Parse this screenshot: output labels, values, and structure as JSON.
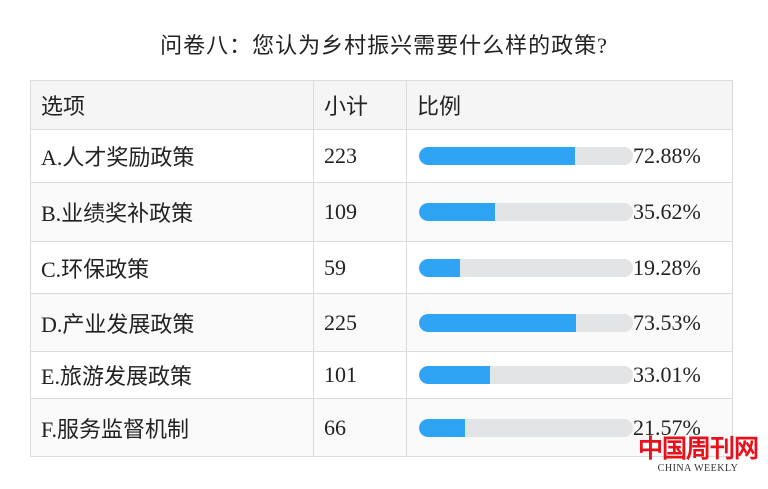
{
  "title": "问卷八：您认为乡村振兴需要什么样的政策?",
  "chart_data": {
    "type": "table",
    "columns": [
      "选项",
      "小计",
      "比例"
    ],
    "rows": [
      {
        "option": "A.人才奖励政策",
        "count": "223",
        "percent": 72.88,
        "percent_label": "72.88%"
      },
      {
        "option": "B.业绩奖补政策",
        "count": "109",
        "percent": 35.62,
        "percent_label": "35.62%"
      },
      {
        "option": "C.环保政策",
        "count": "59",
        "percent": 19.28,
        "percent_label": "19.28%"
      },
      {
        "option": "D.产业发展政策",
        "count": "225",
        "percent": 73.53,
        "percent_label": "73.53%"
      },
      {
        "option": "E.旅游发展政策",
        "count": "101",
        "percent": 33.01,
        "percent_label": "33.01%"
      },
      {
        "option": "F.服务监督机制",
        "count": "66",
        "percent": 21.57,
        "percent_label": "21.57%"
      }
    ],
    "colors": {
      "bar_fill": "#2fa4f4",
      "bar_track": "#e3e4e6"
    }
  },
  "watermark": {
    "cn": "中国周刊网",
    "en": "CHINA WEEKLY",
    "color": "#e8101a"
  }
}
